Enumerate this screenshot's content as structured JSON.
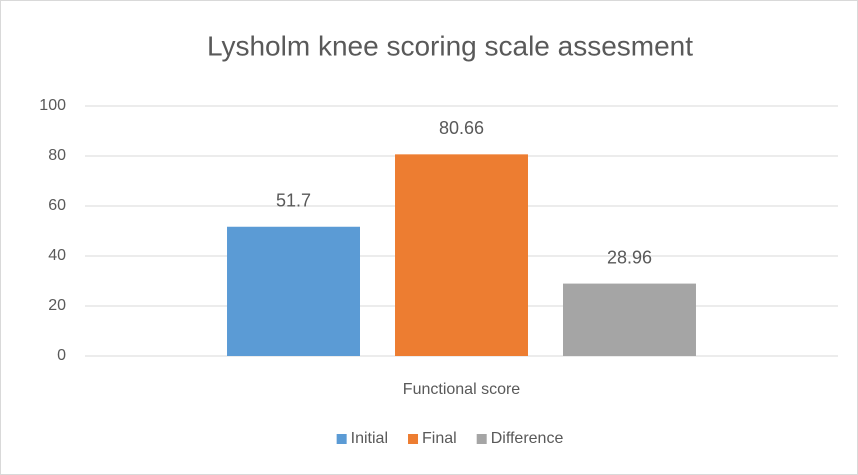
{
  "chart_data": {
    "type": "bar",
    "title": "Lysholm knee scoring scale assesment",
    "categories": [
      "Functional score"
    ],
    "series": [
      {
        "name": "Initial",
        "color": "#5b9bd5",
        "values": [
          51.7
        ]
      },
      {
        "name": "Final",
        "color": "#ed7d31",
        "values": [
          80.66
        ]
      },
      {
        "name": "Difference",
        "color": "#a5a5a5",
        "values": [
          28.96
        ]
      }
    ],
    "ylim": [
      0,
      100
    ],
    "yticks": [
      0,
      20,
      40,
      60,
      80,
      100
    ],
    "grid": true,
    "legend": "bottom"
  }
}
